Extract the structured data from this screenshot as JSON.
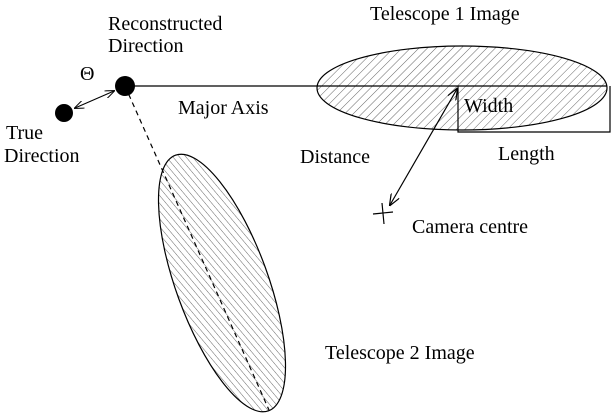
{
  "labels": {
    "telescope1": "Telescope 1 Image",
    "reconstructed": [
      "Reconstructed",
      "Direction"
    ],
    "theta": "Θ",
    "true_direction": [
      "True",
      "Direction"
    ],
    "major_axis": "Major Axis",
    "width": "Width",
    "distance": "Distance",
    "length": "Length",
    "camera_centre": "Camera centre",
    "telescope2": "Telescope 2 Image"
  }
}
